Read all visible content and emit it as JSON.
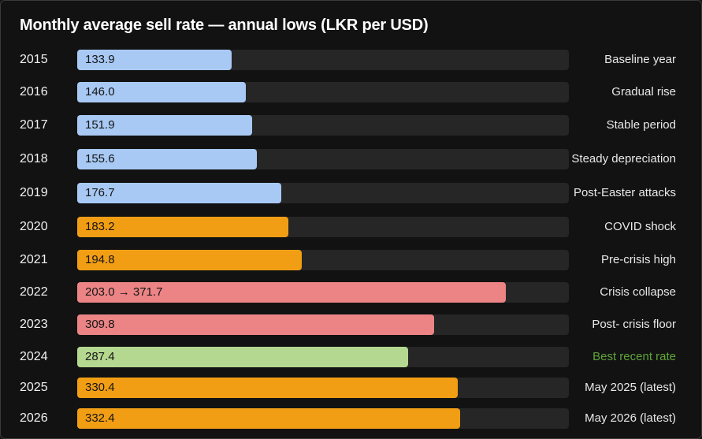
{
  "chart_data": {
    "type": "bar",
    "orientation": "horizontal",
    "title": "Monthly average sell rate — annual lows (LKR per USD)",
    "xlim": [
      0,
      400
    ],
    "grid": false,
    "categories": [
      "2015",
      "2016",
      "2017",
      "2018",
      "2019",
      "2020",
      "2021",
      "2022",
      "2023",
      "2024",
      "2025",
      "2026"
    ],
    "values": [
      133.9,
      146.0,
      151.9,
      155.6,
      176.7,
      183.2,
      194.8,
      371.7,
      309.8,
      287.4,
      330.4,
      332.4
    ],
    "value_labels": [
      "133.9",
      "146.0",
      "151.9",
      "155.6",
      "176.7",
      "183.2",
      "194.8",
      "203.0 → 371.7",
      "309.8",
      "287.4",
      "330.4",
      "332.4"
    ],
    "notes": [
      "Baseline year",
      "Gradual rise",
      "Stable period",
      "Steady depreciation",
      "Post-Easter attacks",
      "COVID shock",
      "Pre-crisis high",
      "Crisis collapse",
      "Post- crisis floor",
      "Best recent rate",
      "May 2025 (latest)",
      "May 2026 (latest)"
    ],
    "bar_colors": [
      "#a8c9f4",
      "#a8c9f4",
      "#a8c9f4",
      "#a8c9f4",
      "#a8c9f4",
      "#f29e14",
      "#f29e14",
      "#ec8485",
      "#ec8485",
      "#b4d88f",
      "#f29e14",
      "#f29e14"
    ],
    "note_colors": [
      "#e8e8e8",
      "#e8e8e8",
      "#e8e8e8",
      "#e8e8e8",
      "#e8e8e8",
      "#e8e8e8",
      "#e8e8e8",
      "#e8e8e8",
      "#e8e8e8",
      "#5fa53a",
      "#e8e8e8",
      "#e8e8e8"
    ]
  }
}
